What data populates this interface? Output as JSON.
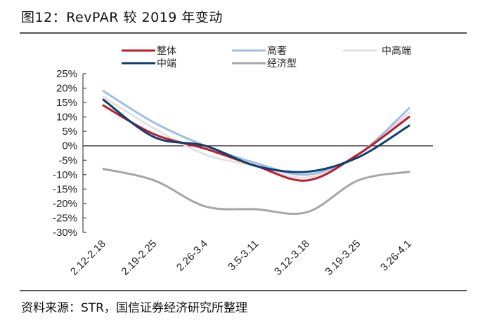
{
  "header": {
    "title": "图12：RevPAR 较 2019 年变动"
  },
  "footer": {
    "source": "资料来源：STR，国信证券经济研究所整理"
  },
  "chart_data": {
    "type": "line",
    "title": "图12：RevPAR 较 2019 年变动",
    "xlabel": "",
    "ylabel": "",
    "categories": [
      "2.12-2.18",
      "2.19-2.25",
      "2.26-3.4",
      "3.5-3.11",
      "3.12-3.18",
      "3.19-3.25",
      "3.26-4.1"
    ],
    "ylim": [
      -30,
      25
    ],
    "yticks": [
      25,
      20,
      15,
      10,
      5,
      0,
      -5,
      -10,
      -15,
      -20,
      -25,
      -30
    ],
    "ytick_labels": [
      "25%",
      "20%",
      "15%",
      "10%",
      "5%",
      "0%",
      "-5%",
      "-10%",
      "-15%",
      "-20%",
      "-25%",
      "-30%"
    ],
    "grid": false,
    "legend_position": "top",
    "series": [
      {
        "name": "整体",
        "color": "#c0192b",
        "values": [
          14,
          4,
          -1,
          -7,
          -12,
          -3,
          10
        ]
      },
      {
        "name": "高奢",
        "color": "#9dbfe3",
        "values": [
          19,
          8,
          0,
          -6,
          -10,
          -3,
          13
        ]
      },
      {
        "name": "中高端",
        "color": "#e2e2e2",
        "values": [
          17,
          6,
          -3,
          -7,
          -11,
          -3,
          11.5
        ]
      },
      {
        "name": "中端",
        "color": "#0e3f6e",
        "values": [
          16,
          3,
          0,
          -7,
          -9,
          -4,
          7
        ]
      },
      {
        "name": "经济型",
        "color": "#a6a6a6",
        "values": [
          -8,
          -12,
          -21,
          -22,
          -23,
          -12,
          -9
        ]
      }
    ],
    "legend_order": [
      0,
      1,
      2,
      3,
      4
    ]
  }
}
